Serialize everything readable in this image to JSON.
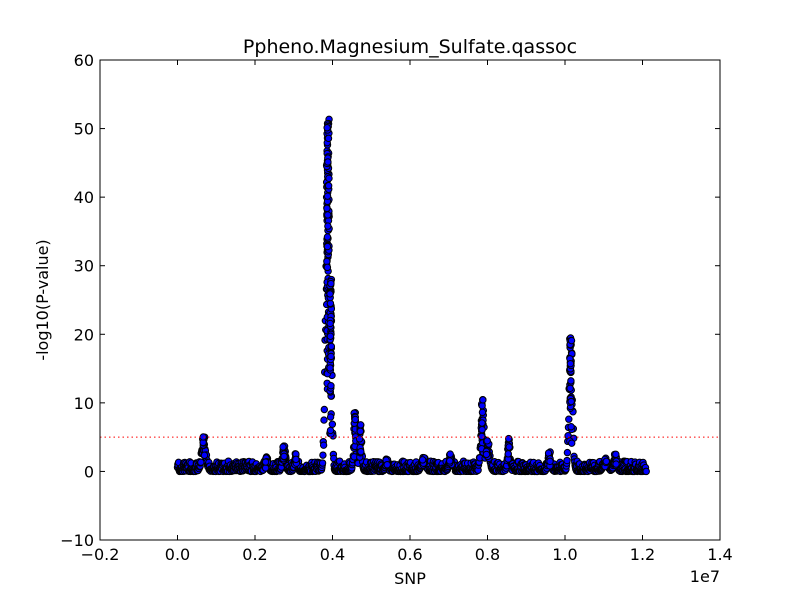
{
  "chart_data": {
    "type": "scatter",
    "title": "Ppheno.Magnesium_Sulfate.qassoc",
    "xlabel": "SNP",
    "ylabel": "-log10(P-value)",
    "x_offset_label": "1e7",
    "xlim": [
      -0.2,
      1.4
    ],
    "ylim": [
      -10,
      60
    ],
    "x_ticks": [
      -0.2,
      0.0,
      0.2,
      0.4,
      0.6,
      0.8,
      1.0,
      1.2,
      1.4
    ],
    "x_tick_labels": [
      "−0.2",
      "0.0",
      "0.2",
      "0.4",
      "0.6",
      "0.8",
      "1.0",
      "1.2",
      "1.4"
    ],
    "y_ticks": [
      -10,
      0,
      10,
      20,
      30,
      40,
      50,
      60
    ],
    "y_tick_labels": [
      "−10",
      "0",
      "10",
      "20",
      "30",
      "40",
      "50",
      "60"
    ],
    "threshold": 5,
    "threshold_color": "#ff0000",
    "marker_fill": "#0000ff",
    "marker_edge": "#000000",
    "peaks": [
      {
        "x": 0.068,
        "height": 5.6,
        "width": 0.008
      },
      {
        "x": 0.23,
        "height": 2.2,
        "width": 0.006
      },
      {
        "x": 0.275,
        "height": 3.9,
        "width": 0.006
      },
      {
        "x": 0.305,
        "height": 2.6,
        "width": 0.005
      },
      {
        "x": 0.388,
        "height": 51.5,
        "width": 0.0075
      },
      {
        "x": 0.395,
        "height": 28,
        "width": 0.005
      },
      {
        "x": 0.458,
        "height": 8.8,
        "width": 0.005
      },
      {
        "x": 0.472,
        "height": 6.8,
        "width": 0.005
      },
      {
        "x": 0.54,
        "height": 1.8,
        "width": 0.005
      },
      {
        "x": 0.635,
        "height": 2.1,
        "width": 0.008
      },
      {
        "x": 0.705,
        "height": 2.6,
        "width": 0.006
      },
      {
        "x": 0.787,
        "height": 10.5,
        "width": 0.006
      },
      {
        "x": 0.8,
        "height": 4.5,
        "width": 0.008
      },
      {
        "x": 0.855,
        "height": 4.8,
        "width": 0.005
      },
      {
        "x": 0.96,
        "height": 2.9,
        "width": 0.006
      },
      {
        "x": 1.015,
        "height": 19.5,
        "width": 0.0065
      },
      {
        "x": 1.105,
        "height": 2.0,
        "width": 0.008
      },
      {
        "x": 1.13,
        "height": 2.5,
        "width": 0.006
      }
    ],
    "x_range": [
      0.0,
      1.21
    ],
    "baseline_max": 1.5
  }
}
